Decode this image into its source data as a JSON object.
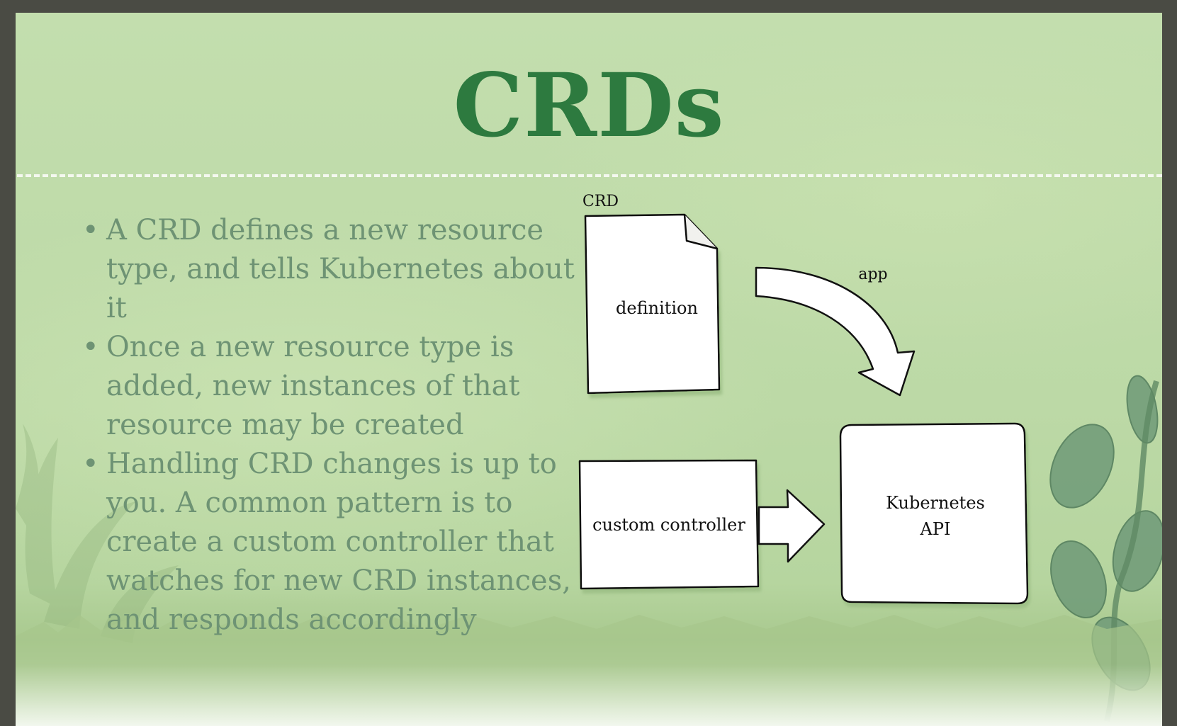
{
  "slide": {
    "title": "CRDs",
    "bullets": [
      "A CRD defines a new resource type, and tells Kubernetes about it",
      "Once a new resource type is added, new instances of that resource may be created",
      "Handling CRD changes is up to you. A common pattern is to create a custom controller that watches for new CRD instances, and responds accordingly"
    ]
  },
  "diagram": {
    "crd_caption": "CRD",
    "definition_label": "definition",
    "app_label": "app",
    "controller_label": "custom controller",
    "api_label_line1": "Kubernetes",
    "api_label_line2": "API"
  },
  "colors": {
    "title": "#2d7a3f",
    "bullet_text": "#6e9374",
    "background": "#c3deae",
    "frame": "#4a4b44",
    "divider": "#f4f8ef"
  }
}
